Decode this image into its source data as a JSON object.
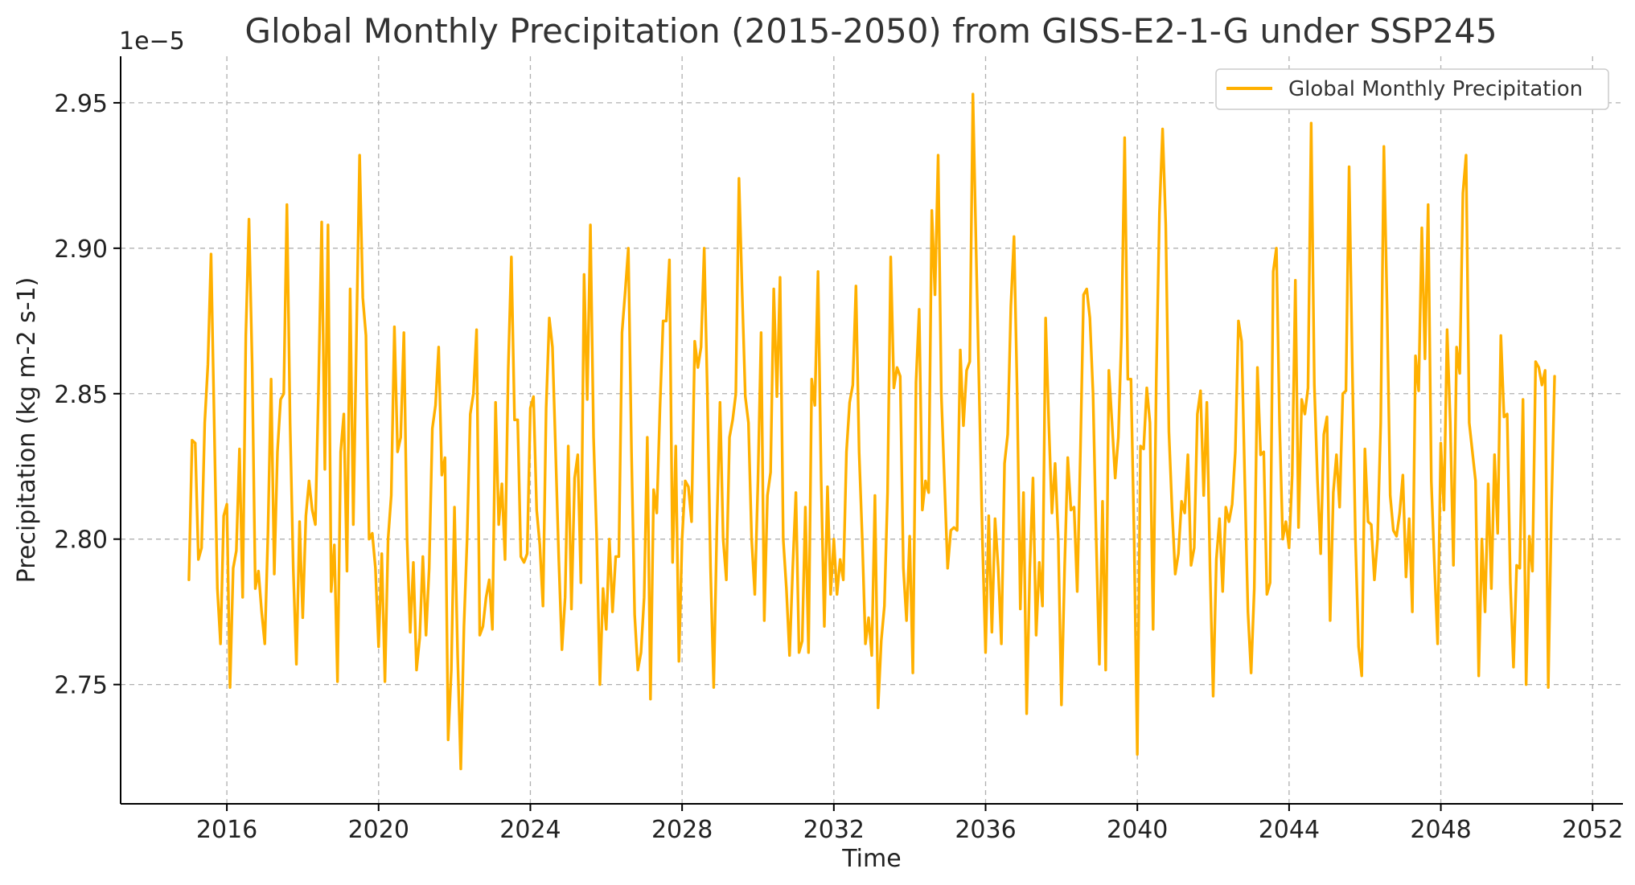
{
  "chart_data": {
    "type": "line",
    "title": "Global Monthly Precipitation (2015-2050) from GISS-E2-1-G under SSP245",
    "xlabel": "Time",
    "ylabel": "Precipitation (kg m-2 s-1)",
    "y_offset_label": "1e−5",
    "y_multiplier": 1e-05,
    "xlim": [
      2013.2,
      2052.8
    ],
    "ylim": [
      2.709,
      2.966
    ],
    "x_ticks": [
      2016,
      2020,
      2024,
      2028,
      2032,
      2036,
      2040,
      2044,
      2048,
      2052
    ],
    "x_tick_labels": [
      "2016",
      "2020",
      "2024",
      "2028",
      "2032",
      "2036",
      "2040",
      "2044",
      "2048",
      "2052"
    ],
    "y_ticks": [
      2.75,
      2.8,
      2.85,
      2.9,
      2.95
    ],
    "y_tick_labels": [
      "2.75",
      "2.80",
      "2.85",
      "2.90",
      "2.95"
    ],
    "grid": true,
    "legend_position": "top-right",
    "series": [
      {
        "name": "Global Monthly Precipitation",
        "color": "#FFB000",
        "x_start": 2015.0,
        "x_step": 0.08333,
        "values": [
          2.786,
          2.834,
          2.833,
          2.793,
          2.797,
          2.84,
          2.86,
          2.898,
          2.84,
          2.783,
          2.764,
          2.808,
          2.812,
          2.749,
          2.79,
          2.796,
          2.831,
          2.78,
          2.87,
          2.91,
          2.86,
          2.783,
          2.789,
          2.775,
          2.764,
          2.802,
          2.855,
          2.788,
          2.83,
          2.848,
          2.85,
          2.915,
          2.84,
          2.79,
          2.757,
          2.806,
          2.773,
          2.808,
          2.82,
          2.81,
          2.805,
          2.852,
          2.909,
          2.824,
          2.908,
          2.782,
          2.798,
          2.751,
          2.83,
          2.843,
          2.789,
          2.886,
          2.805,
          2.87,
          2.932,
          2.883,
          2.87,
          2.8,
          2.802,
          2.79,
          2.763,
          2.795,
          2.751,
          2.8,
          2.815,
          2.873,
          2.83,
          2.835,
          2.871,
          2.8,
          2.768,
          2.792,
          2.755,
          2.766,
          2.794,
          2.767,
          2.79,
          2.838,
          2.846,
          2.866,
          2.822,
          2.828,
          2.731,
          2.755,
          2.811,
          2.76,
          2.721,
          2.77,
          2.8,
          2.843,
          2.85,
          2.872,
          2.767,
          2.77,
          2.78,
          2.786,
          2.769,
          2.847,
          2.805,
          2.819,
          2.793,
          2.858,
          2.897,
          2.841,
          2.841,
          2.794,
          2.792,
          2.795,
          2.845,
          2.849,
          2.81,
          2.798,
          2.777,
          2.845,
          2.876,
          2.866,
          2.83,
          2.793,
          2.762,
          2.78,
          2.832,
          2.776,
          2.821,
          2.829,
          2.785,
          2.891,
          2.848,
          2.908,
          2.835,
          2.8,
          2.75,
          2.783,
          2.769,
          2.8,
          2.775,
          2.794,
          2.794,
          2.871,
          2.885,
          2.9,
          2.83,
          2.774,
          2.755,
          2.761,
          2.78,
          2.835,
          2.745,
          2.817,
          2.809,
          2.845,
          2.875,
          2.875,
          2.896,
          2.792,
          2.832,
          2.758,
          2.8,
          2.82,
          2.818,
          2.806,
          2.868,
          2.859,
          2.866,
          2.9,
          2.85,
          2.79,
          2.749,
          2.804,
          2.847,
          2.8,
          2.786,
          2.835,
          2.841,
          2.85,
          2.924,
          2.885,
          2.849,
          2.84,
          2.8,
          2.781,
          2.82,
          2.871,
          2.772,
          2.815,
          2.823,
          2.886,
          2.849,
          2.89,
          2.8,
          2.783,
          2.76,
          2.79,
          2.816,
          2.761,
          2.765,
          2.811,
          2.761,
          2.855,
          2.846,
          2.892,
          2.82,
          2.77,
          2.818,
          2.781,
          2.8,
          2.781,
          2.793,
          2.786,
          2.83,
          2.847,
          2.853,
          2.887,
          2.83,
          2.8,
          2.764,
          2.773,
          2.76,
          2.815,
          2.742,
          2.765,
          2.777,
          2.816,
          2.897,
          2.852,
          2.859,
          2.856,
          2.79,
          2.772,
          2.801,
          2.754,
          2.854,
          2.879,
          2.81,
          2.82,
          2.816,
          2.913,
          2.884,
          2.932,
          2.85,
          2.82,
          2.79,
          2.803,
          2.804,
          2.803,
          2.865,
          2.839,
          2.858,
          2.861,
          2.953,
          2.9,
          2.85,
          2.8,
          2.761,
          2.808,
          2.768,
          2.807,
          2.79,
          2.764,
          2.826,
          2.836,
          2.88,
          2.904,
          2.85,
          2.776,
          2.816,
          2.74,
          2.79,
          2.821,
          2.767,
          2.792,
          2.777,
          2.876,
          2.84,
          2.809,
          2.826,
          2.8,
          2.743,
          2.79,
          2.828,
          2.81,
          2.811,
          2.782,
          2.83,
          2.884,
          2.886,
          2.876,
          2.85,
          2.8,
          2.757,
          2.813,
          2.755,
          2.858,
          2.84,
          2.821,
          2.835,
          2.87,
          2.938,
          2.855,
          2.855,
          2.8,
          2.726,
          2.832,
          2.831,
          2.852,
          2.84,
          2.769,
          2.855,
          2.912,
          2.941,
          2.908,
          2.837,
          2.81,
          2.788,
          2.795,
          2.813,
          2.809,
          2.829,
          2.791,
          2.797,
          2.843,
          2.851,
          2.815,
          2.847,
          2.79,
          2.746,
          2.793,
          2.807,
          2.782,
          2.811,
          2.806,
          2.812,
          2.83,
          2.875,
          2.868,
          2.82,
          2.775,
          2.754,
          2.783,
          2.859,
          2.829,
          2.83,
          2.781,
          2.785,
          2.892,
          2.9,
          2.84,
          2.8,
          2.806,
          2.797,
          2.822,
          2.889,
          2.804,
          2.848,
          2.843,
          2.852,
          2.943,
          2.853,
          2.82,
          2.795,
          2.836,
          2.842,
          2.772,
          2.816,
          2.829,
          2.811,
          2.85,
          2.851,
          2.928,
          2.86,
          2.8,
          2.763,
          2.753,
          2.831,
          2.806,
          2.805,
          2.786,
          2.8,
          2.84,
          2.935,
          2.88,
          2.815,
          2.803,
          2.801,
          2.809,
          2.822,
          2.787,
          2.807,
          2.775,
          2.863,
          2.851,
          2.907,
          2.862,
          2.915,
          2.82,
          2.791,
          2.764,
          2.833,
          2.81,
          2.872,
          2.84,
          2.791,
          2.866,
          2.857,
          2.919,
          2.932,
          2.84,
          2.83,
          2.82,
          2.753,
          2.8,
          2.775,
          2.819,
          2.783,
          2.829,
          2.802,
          2.87,
          2.842,
          2.843,
          2.785,
          2.756,
          2.791,
          2.79,
          2.848,
          2.75,
          2.801,
          2.789,
          2.861,
          2.859,
          2.853,
          2.858,
          2.749,
          2.81,
          2.856
        ]
      }
    ]
  }
}
